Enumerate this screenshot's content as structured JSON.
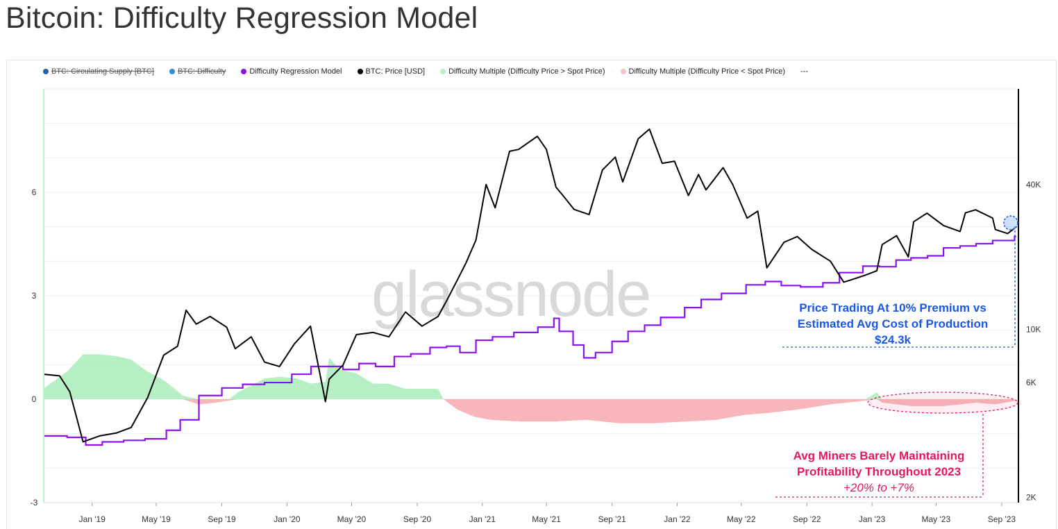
{
  "page": {
    "title": "Bitcoin: Difficulty Regression Model",
    "watermark": "glassnode"
  },
  "legend": [
    {
      "label": "BTC: Circulating Supply [BTC]",
      "color": "#2a5db0",
      "hidden": true
    },
    {
      "label": "BTC: Difficulty",
      "color": "#2b8fd6",
      "hidden": true
    },
    {
      "label": "Difficulty Regression Model",
      "color": "#8a12f0",
      "hidden": false
    },
    {
      "label": "BTC: Price [USD]",
      "color": "#000000",
      "hidden": false
    },
    {
      "label": "Difficulty Multiple (Difficulty Price > Spot Price)",
      "color": "#b9f2c8",
      "hidden": false
    },
    {
      "label": "Difficulty Multiple (Difficulty Price < Spot Price)",
      "color": "#f9c0c4",
      "hidden": false
    },
    {
      "label": "---",
      "color": "",
      "hidden": false
    }
  ],
  "annotations": {
    "blue_line1": "Price Trading At 10% Premium vs",
    "blue_line2": "Estimated Avg Cost of Production",
    "blue_line3": "$24.3k",
    "pink_line1": "Avg Miners Barely Maintaining",
    "pink_line2": "Profitability Throughout 2023",
    "pink_line3": "+20% to +7%"
  },
  "colors": {
    "model": "#8a12f0",
    "price": "#000000",
    "positive_fill": "#a8ecb8",
    "negative_fill": "#f7a9ae",
    "blue_annotation": "#1a56e8",
    "pink_annotation": "#e8175d",
    "axis_right": "#000000",
    "axis_left_accent": "#b9f2c8"
  },
  "chart_data": {
    "type": "line",
    "title": "Bitcoin: Difficulty Regression Model",
    "x_tick_labels": [
      "Jan '19",
      "May '19",
      "Sep '19",
      "Jan '20",
      "May '20",
      "Sep '20",
      "Jan '21",
      "May '21",
      "Sep '21",
      "Jan '22",
      "May '22",
      "Sep '22",
      "Jan '23",
      "May '23",
      "Sep '23"
    ],
    "left_axis": {
      "ticks": [
        -3,
        0,
        3,
        6
      ],
      "tick_labels": [
        "-3",
        "0",
        "3",
        "6"
      ],
      "range": [
        -3,
        9
      ]
    },
    "right_axis": {
      "scale": "log",
      "ticks": [
        2000,
        6000,
        10000,
        40000
      ],
      "tick_labels": [
        "2K",
        "6K",
        "10K",
        "40K"
      ],
      "range": [
        1900,
        100000
      ]
    },
    "grid": true,
    "legend_position": "top",
    "series": [
      {
        "name": "BTC: Price [USD]",
        "axis": "right",
        "x": [
          "2018-10-01",
          "2018-11-01",
          "2018-11-20",
          "2018-12-15",
          "2019-01-15",
          "2019-02-15",
          "2019-03-15",
          "2019-04-15",
          "2019-05-15",
          "2019-06-10",
          "2019-06-26",
          "2019-07-15",
          "2019-08-10",
          "2019-09-10",
          "2019-09-26",
          "2019-10-26",
          "2019-11-20",
          "2019-12-18",
          "2020-01-15",
          "2020-02-14",
          "2020-03-13",
          "2020-03-20",
          "2020-04-15",
          "2020-05-10",
          "2020-06-10",
          "2020-07-10",
          "2020-08-10",
          "2020-09-10",
          "2020-10-10",
          "2020-10-25",
          "2020-11-15",
          "2020-12-01",
          "2020-12-20",
          "2021-01-08",
          "2021-01-25",
          "2021-02-21",
          "2021-03-10",
          "2021-04-14",
          "2021-05-01",
          "2021-05-19",
          "2021-06-01",
          "2021-06-22",
          "2021-07-20",
          "2021-08-14",
          "2021-09-07",
          "2021-09-21",
          "2021-10-20",
          "2021-11-10",
          "2021-12-04",
          "2021-12-27",
          "2022-01-22",
          "2022-02-10",
          "2022-02-24",
          "2022-03-28",
          "2022-04-15",
          "2022-05-12",
          "2022-06-01",
          "2022-06-18",
          "2022-07-20",
          "2022-08-14",
          "2022-09-10",
          "2022-10-15",
          "2022-11-09",
          "2022-11-21",
          "2022-12-20",
          "2023-01-10",
          "2023-01-20",
          "2023-02-16",
          "2023-03-10",
          "2023-03-20",
          "2023-04-14",
          "2023-05-15",
          "2023-06-15",
          "2023-06-25",
          "2023-07-14",
          "2023-08-15",
          "2023-08-20",
          "2023-09-12",
          "2023-09-25"
        ],
        "y": [
          6500,
          6400,
          5500,
          3400,
          3600,
          3700,
          3900,
          5200,
          7800,
          8500,
          12000,
          10500,
          11300,
          10200,
          8300,
          9300,
          7300,
          7000,
          8700,
          10300,
          5000,
          6200,
          7100,
          9500,
          9700,
          9300,
          11800,
          10300,
          11300,
          13000,
          16000,
          18800,
          23500,
          40000,
          32000,
          55000,
          56000,
          63500,
          56000,
          39000,
          36000,
          31500,
          30000,
          46000,
          52000,
          41000,
          62000,
          68000,
          49000,
          50000,
          36000,
          44000,
          38000,
          47000,
          40000,
          29000,
          31000,
          18000,
          23000,
          24300,
          21500,
          19200,
          15700,
          16000,
          16800,
          17500,
          22500,
          24500,
          20000,
          28000,
          30400,
          27000,
          25500,
          30500,
          31400,
          29000,
          26000,
          25000,
          26300
        ]
      },
      {
        "name": "Difficulty Regression Model",
        "axis": "right",
        "x": [
          "2018-10-01",
          "2018-11-15",
          "2018-12-20",
          "2019-01-20",
          "2019-03-01",
          "2019-04-10",
          "2019-05-20",
          "2019-06-15",
          "2019-07-20",
          "2019-09-01",
          "2019-10-10",
          "2019-11-20",
          "2020-01-10",
          "2020-02-15",
          "2020-03-15",
          "2020-04-15",
          "2020-05-15",
          "2020-06-15",
          "2020-07-20",
          "2020-08-20",
          "2020-09-25",
          "2020-10-26",
          "2020-11-20",
          "2020-12-20",
          "2021-01-20",
          "2021-03-01",
          "2021-04-15",
          "2021-05-15",
          "2021-05-25",
          "2021-06-20",
          "2021-07-10",
          "2021-08-01",
          "2021-09-01",
          "2021-10-01",
          "2021-11-01",
          "2021-12-01",
          "2022-01-15",
          "2022-02-15",
          "2022-03-25",
          "2022-05-10",
          "2022-06-15",
          "2022-07-15",
          "2022-08-20",
          "2022-10-01",
          "2022-11-01",
          "2022-12-15",
          "2023-01-15",
          "2023-02-15",
          "2023-03-15",
          "2023-04-15",
          "2023-05-15",
          "2023-06-15",
          "2023-07-15",
          "2023-08-15",
          "2023-09-25"
        ],
        "y": [
          3600,
          3550,
          3300,
          3400,
          3450,
          3500,
          3800,
          4200,
          5300,
          5700,
          5900,
          6000,
          6500,
          7000,
          7000,
          6800,
          7200,
          7000,
          7700,
          7900,
          8400,
          8500,
          8000,
          9000,
          9300,
          9700,
          10200,
          11100,
          9800,
          8600,
          7600,
          8000,
          8900,
          9800,
          10400,
          11200,
          12300,
          13300,
          14100,
          15300,
          15800,
          15200,
          15000,
          15600,
          17200,
          18300,
          18200,
          19400,
          19800,
          20200,
          21800,
          22200,
          22700,
          23400,
          24300
        ]
      },
      {
        "name": "Difficulty Multiple (Difficulty Price > Spot Price)",
        "axis": "left",
        "type": "area",
        "x": [
          "2018-10-01",
          "2018-11-15",
          "2018-12-15",
          "2019-01-15",
          "2019-02-15",
          "2019-03-15",
          "2019-04-15",
          "2019-05-15",
          "2019-06-01",
          "2019-06-20",
          "2019-07-20",
          "2019-08-10",
          "2019-09-15",
          "2019-10-01",
          "2019-10-26",
          "2019-11-20",
          "2019-12-18",
          "2020-01-20",
          "2020-02-14",
          "2020-03-13",
          "2020-03-20",
          "2020-04-10",
          "2020-05-10",
          "2020-06-10",
          "2020-07-10",
          "2020-08-10",
          "2020-09-10",
          "2020-10-10",
          "2020-10-20",
          "2022-12-20",
          "2023-01-10",
          "2023-01-20"
        ],
        "y": [
          0.3,
          0.8,
          1.3,
          1.3,
          1.25,
          1.15,
          0.8,
          0.55,
          0.35,
          0.1,
          0,
          0,
          0,
          0.2,
          0.4,
          0.6,
          0.65,
          0.6,
          0.45,
          0.5,
          1.2,
          0.85,
          0.75,
          0.45,
          0.45,
          0.3,
          0.3,
          0.3,
          0,
          0,
          0.2,
          0
        ]
      },
      {
        "name": "Difficulty Multiple (Difficulty Price < Spot Price)",
        "axis": "left",
        "type": "area",
        "x": [
          "2019-06-20",
          "2019-07-20",
          "2019-08-20",
          "2019-09-10",
          "2019-10-01",
          "2020-10-20",
          "2020-11-15",
          "2020-12-15",
          "2021-01-15",
          "2021-03-15",
          "2021-05-15",
          "2021-07-15",
          "2021-09-15",
          "2021-11-15",
          "2022-01-15",
          "2022-03-15",
          "2022-05-10",
          "2022-06-20",
          "2022-08-15",
          "2022-10-15",
          "2022-12-15",
          "2023-01-10",
          "2023-01-20",
          "2023-03-15",
          "2023-05-15",
          "2023-07-15",
          "2023-08-20",
          "2023-09-25"
        ],
        "y": [
          0,
          -0.15,
          -0.1,
          -0.05,
          0,
          0,
          -0.3,
          -0.5,
          -0.6,
          -0.65,
          -0.65,
          -0.6,
          -0.7,
          -0.7,
          -0.65,
          -0.6,
          -0.45,
          -0.4,
          -0.3,
          -0.15,
          -0.05,
          0,
          -0.1,
          -0.2,
          -0.2,
          -0.1,
          -0.15,
          -0.05
        ]
      }
    ]
  }
}
